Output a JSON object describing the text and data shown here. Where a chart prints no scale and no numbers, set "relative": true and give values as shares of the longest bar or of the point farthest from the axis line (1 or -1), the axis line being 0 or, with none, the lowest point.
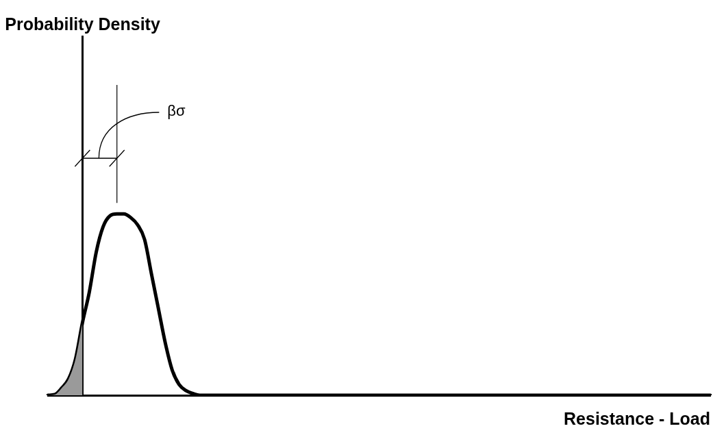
{
  "chart_data": {
    "type": "line",
    "relative": true,
    "xlabel": "Resistance - Load",
    "annotations": [
      "Probability Density",
      "βσ"
    ],
    "marker": "none",
    "categories": [
      null,
      null,
      null,
      null,
      null,
      null,
      null,
      null,
      null,
      null,
      null,
      null,
      null,
      null,
      null,
      null,
      null,
      null,
      null,
      null,
      null,
      null,
      null,
      null,
      null,
      null,
      null,
      null,
      null,
      null,
      null,
      null,
      null,
      null,
      null,
      null,
      null,
      null,
      null,
      null,
      null,
      null,
      null,
      null,
      null,
      null,
      null,
      null,
      null,
      null,
      null,
      null,
      null,
      null,
      null,
      null,
      null,
      null,
      null,
      null,
      null,
      null,
      null,
      null,
      null,
      null,
      null,
      null,
      null,
      null,
      null,
      null,
      null,
      null,
      null,
      null,
      null,
      null,
      null,
      null,
      null,
      null,
      null,
      null,
      null,
      null,
      null,
      null,
      null,
      null,
      null,
      null,
      null,
      null,
      null,
      null,
      null
    ],
    "series": [
      {
        "type": "area",
        "color": "#9a9a9a",
        "values": [
          0,
          0.004,
          0.04,
          0.09,
          0.2,
          0.4,
          null,
          null,
          null,
          null,
          null,
          null,
          null,
          null,
          null,
          null,
          null,
          null,
          null,
          null,
          null,
          null,
          null,
          null,
          null,
          null,
          null,
          null,
          null,
          null,
          null,
          null,
          null,
          null,
          null,
          null,
          null,
          null,
          null,
          null,
          null,
          null,
          null,
          null,
          null,
          null,
          null,
          null,
          null,
          null,
          null,
          null,
          null,
          null,
          null,
          null,
          null,
          null,
          null,
          null,
          null,
          null,
          null,
          null,
          null,
          null,
          null,
          null,
          null,
          null,
          null,
          null,
          null,
          null,
          null,
          null,
          null,
          null,
          null,
          null,
          null,
          null,
          null,
          null,
          null,
          null,
          null,
          null,
          null,
          null,
          null,
          null,
          null,
          null,
          null,
          null,
          null
        ]
      },
      {
        "color": "#000000",
        "values": [
          0,
          0.004,
          0.04,
          0.09,
          0.2,
          0.4,
          0.57,
          0.79,
          0.93,
          0.99,
          1,
          1,
          0.98,
          0.94,
          0.86,
          0.67,
          0.48,
          0.29,
          0.14,
          0.06,
          0.026,
          0.01,
          0,
          0,
          0,
          0,
          0,
          0,
          0,
          0,
          0,
          0,
          0,
          0,
          0,
          0,
          0,
          0,
          0,
          0,
          0,
          0,
          0,
          0,
          0,
          0,
          0,
          0,
          0,
          0,
          0,
          0,
          0,
          0,
          0,
          0,
          0,
          0,
          0,
          0,
          0,
          0,
          0,
          0,
          0,
          0,
          0,
          0,
          0,
          0,
          0,
          0,
          0,
          0,
          0,
          0,
          0,
          0,
          0,
          0,
          0,
          0,
          0,
          0,
          0,
          0,
          0,
          0,
          0,
          0,
          0,
          0,
          0,
          0,
          0,
          0,
          0
        ]
      }
    ]
  }
}
